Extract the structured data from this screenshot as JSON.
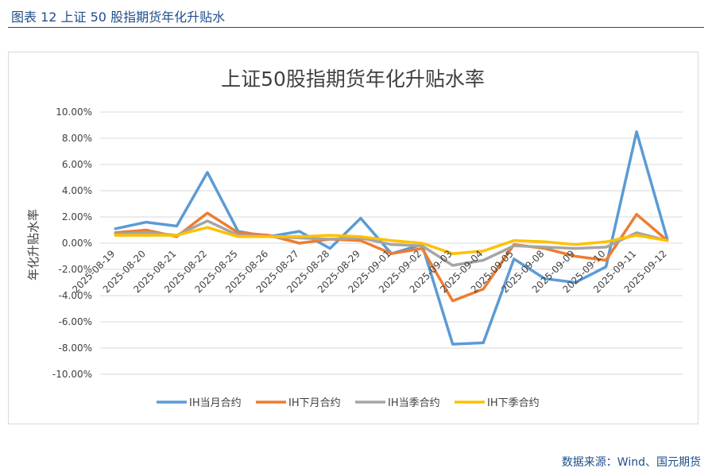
{
  "figure": {
    "caption": "图表 12  上证 50 股指期货年化升贴水",
    "source": "数据来源：Wind、国元期货"
  },
  "chart_data": {
    "type": "line",
    "title": "上证50股指期货年化升贴水率",
    "xlabel": "",
    "ylabel": "年化升贴水率",
    "ylim": [
      -10,
      10
    ],
    "yticks": [
      "10.00%",
      "8.00%",
      "6.00%",
      "4.00%",
      "2.00%",
      "0.00%",
      "-2.00%",
      "-4.00%",
      "-6.00%",
      "-8.00%",
      "-10.00%"
    ],
    "grid": true,
    "legend_position": "bottom",
    "categories": [
      "2025-08-19",
      "2025-08-20",
      "2025-08-21",
      "2025-08-22",
      "2025-08-25",
      "2025-08-26",
      "2025-08-27",
      "2025-08-28",
      "2025-08-29",
      "2025-09-01",
      "2025-09-02",
      "2025-09-03",
      "2025-09-04",
      "2025-09-05",
      "2025-09-08",
      "2025-09-09",
      "2025-09-10",
      "2025-09-11",
      "2025-09-12"
    ],
    "series": [
      {
        "name": "IH当月合约",
        "color": "#5b9bd5",
        "values": [
          1.1,
          1.6,
          1.3,
          5.4,
          0.9,
          0.5,
          0.9,
          -0.4,
          1.9,
          -0.8,
          -0.1,
          -7.7,
          -7.6,
          -1.2,
          -2.7,
          -3.0,
          -1.8,
          8.5,
          0.3
        ]
      },
      {
        "name": "IH下月合约",
        "color": "#ed7d31",
        "values": [
          0.8,
          1.0,
          0.5,
          2.3,
          0.8,
          0.6,
          0.0,
          0.3,
          0.2,
          -0.8,
          -0.4,
          -4.4,
          -3.5,
          -0.1,
          -0.4,
          -1.0,
          -1.3,
          2.2,
          0.2
        ]
      },
      {
        "name": "IH当季合约",
        "color": "#a5a5a5",
        "values": [
          0.7,
          0.8,
          0.6,
          1.7,
          0.6,
          0.5,
          0.4,
          0.3,
          0.4,
          -0.1,
          -0.2,
          -1.7,
          -1.3,
          -0.2,
          -0.3,
          -0.4,
          -0.3,
          0.8,
          0.2
        ]
      },
      {
        "name": "IH下季合约",
        "color": "#ffc000",
        "values": [
          0.6,
          0.6,
          0.6,
          1.2,
          0.5,
          0.5,
          0.5,
          0.6,
          0.5,
          0.2,
          0.0,
          -0.8,
          -0.6,
          0.2,
          0.1,
          -0.1,
          0.1,
          0.6,
          0.2
        ]
      }
    ]
  }
}
